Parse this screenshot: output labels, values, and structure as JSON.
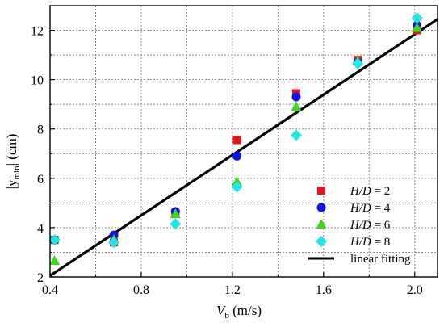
{
  "chart_data": {
    "type": "scatter",
    "x_label_main": "V",
    "x_label_sub": "b",
    "x_label_unit": " (m/s)",
    "y_label_pre": "|y",
    "y_label_sub": "min",
    "y_label_post": "| (cm)",
    "xlim": [
      0.4,
      2.1
    ],
    "ylim": [
      2,
      13
    ],
    "x_ticks": [
      0.4,
      0.8,
      1.2,
      1.6,
      2.0
    ],
    "x_tick_labels": [
      "0.4",
      "0.8",
      "1.2",
      "1.6",
      "2.0"
    ],
    "y_ticks": [
      2,
      4,
      6,
      8,
      10,
      12
    ],
    "y_tick_labels": [
      "2",
      "4",
      "6",
      "8",
      "10",
      "12"
    ],
    "x_minor_grid": [
      0.6,
      1.0,
      1.4,
      1.8
    ],
    "y_minor_grid": [
      3,
      5,
      7,
      9,
      11
    ],
    "grid": true,
    "legend_position": "bottom-right",
    "series": [
      {
        "label_italic": "H/D",
        "label_rest": " = 2",
        "marker": "square",
        "color": "#e8141c",
        "x": [
          0.42,
          0.68,
          0.95,
          1.22,
          1.48,
          1.75,
          2.01
        ],
        "y": [
          3.5,
          3.4,
          4.6,
          7.55,
          9.45,
          10.8,
          12.0
        ]
      },
      {
        "label_italic": "H/D",
        "label_rest": " = 4",
        "marker": "circle",
        "color": "#1111e8",
        "x": [
          0.42,
          0.68,
          0.95,
          1.22,
          1.48,
          1.75,
          2.01
        ],
        "y": [
          3.5,
          3.7,
          4.65,
          6.9,
          9.3,
          10.7,
          12.2
        ]
      },
      {
        "label_italic": "H/D",
        "label_rest": " = 6",
        "marker": "triangle",
        "color": "#3ed61e",
        "x": [
          0.42,
          0.68,
          0.95,
          1.22,
          1.48,
          1.75,
          2.01
        ],
        "y": [
          2.65,
          3.5,
          4.55,
          5.85,
          8.9,
          10.75,
          12.1
        ]
      },
      {
        "label_italic": "H/D",
        "label_rest": " = 8",
        "marker": "diamond",
        "color": "#22e6e6",
        "x": [
          0.42,
          0.68,
          0.95,
          1.22,
          1.48,
          1.75,
          2.01
        ],
        "y": [
          3.5,
          3.4,
          4.15,
          5.65,
          7.75,
          10.65,
          12.5
        ]
      }
    ],
    "fit_line": {
      "label": "linear fitting",
      "color": "#000000",
      "x": [
        0.4,
        2.1
      ],
      "y": [
        2.05,
        12.45
      ]
    }
  }
}
